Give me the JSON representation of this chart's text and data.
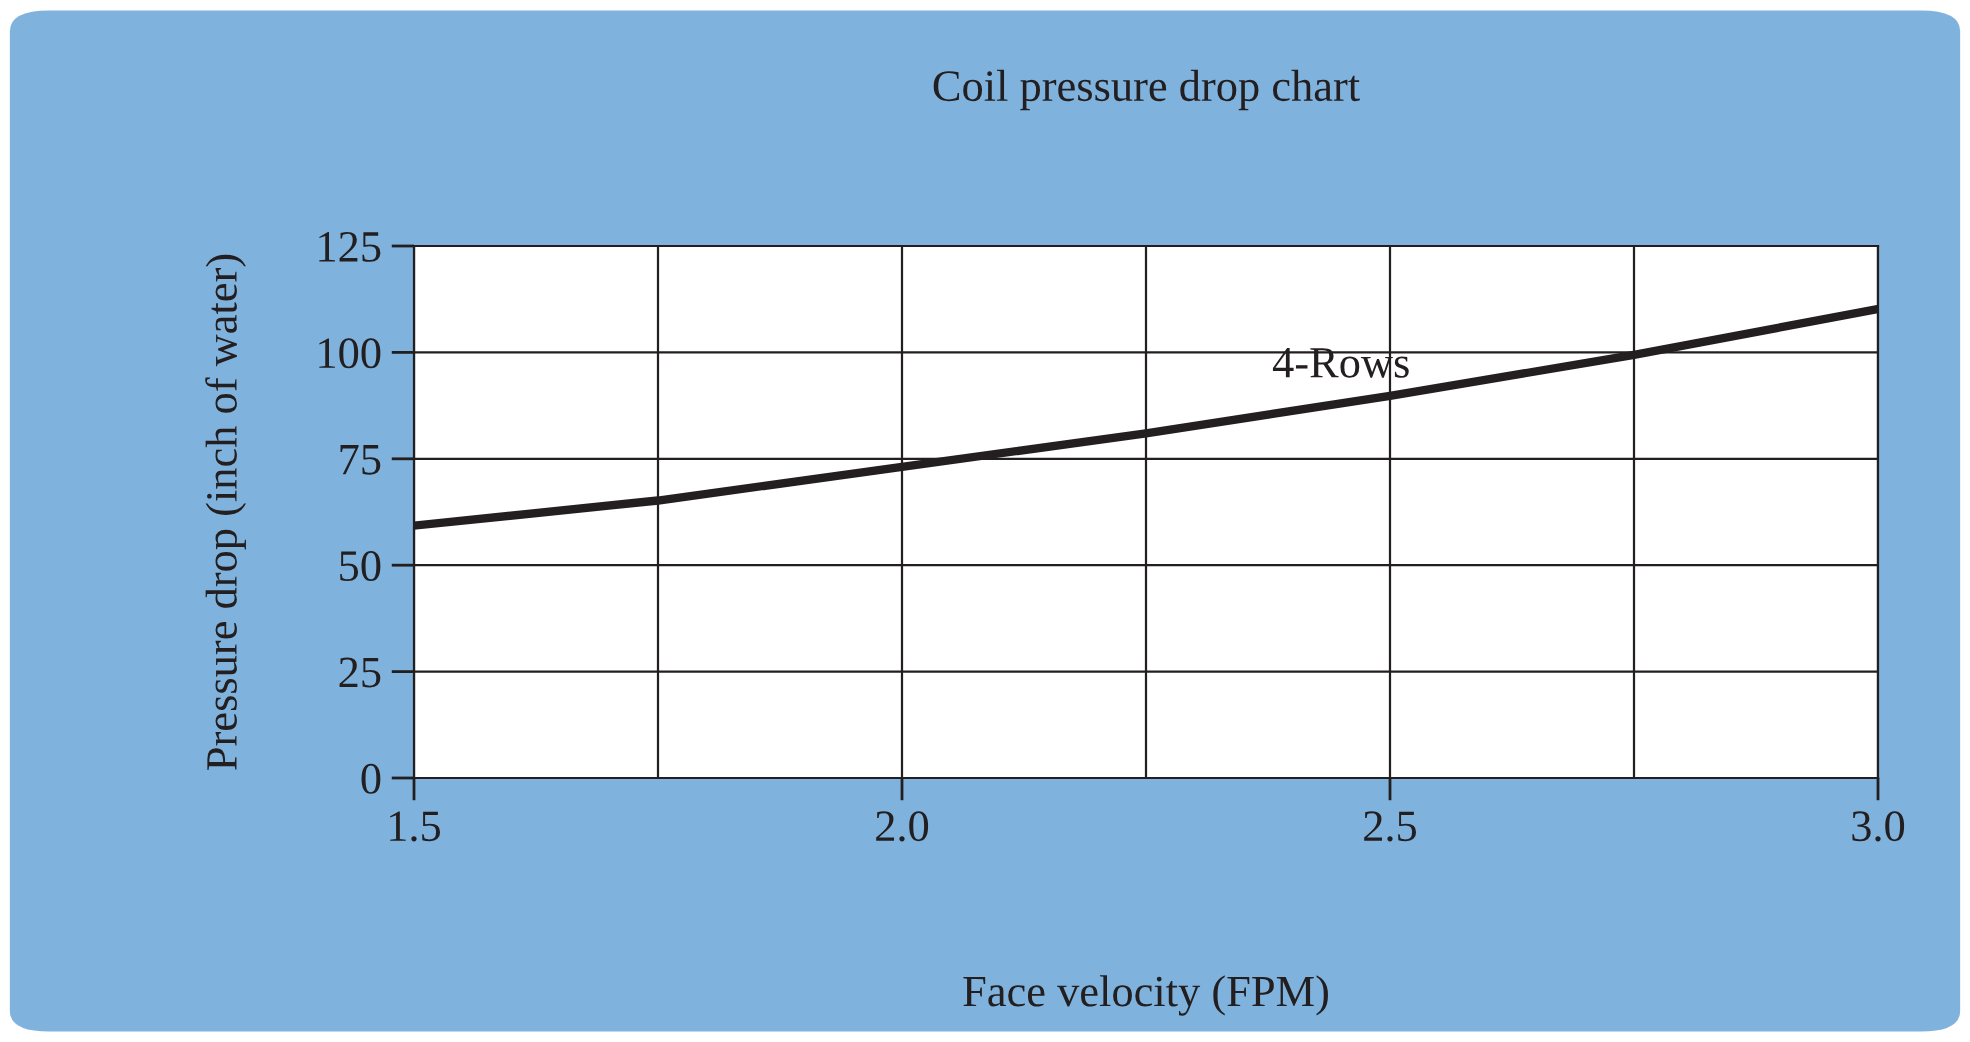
{
  "chart_data": {
    "type": "line",
    "title": "Coil pressure drop chart",
    "xlabel": "Face velocity (FPM)",
    "ylabel": "Pressure drop (inch of water)",
    "x": [
      1.5,
      1.75,
      2.0,
      2.25,
      2.5,
      2.75,
      3.0
    ],
    "series": [
      {
        "color": "#231f20",
        "values": [
          59.3,
          65.2,
          73.1,
          81.0,
          89.8,
          99.4,
          110.2
        ]
      }
    ],
    "xlim": [
      1.5,
      3.0
    ],
    "ylim": [
      0,
      125
    ],
    "xticks": [
      {
        "value": 1.5,
        "label": "1.5"
      },
      {
        "value": 1.75,
        "label": null
      },
      {
        "value": 2.0,
        "label": "2.0"
      },
      {
        "value": 2.25,
        "label": null
      },
      {
        "value": 2.5,
        "label": "2.5"
      },
      {
        "value": 2.75,
        "label": null
      },
      {
        "value": 3.0,
        "label": "3.0"
      }
    ],
    "yticks": [
      0,
      25,
      50,
      75,
      100,
      125
    ],
    "annotations": [
      {
        "text": "4-Rows",
        "x": 2.45,
        "y": 88
      }
    ],
    "grid": true,
    "legend": false,
    "marker": "none",
    "line_style": "solid"
  }
}
